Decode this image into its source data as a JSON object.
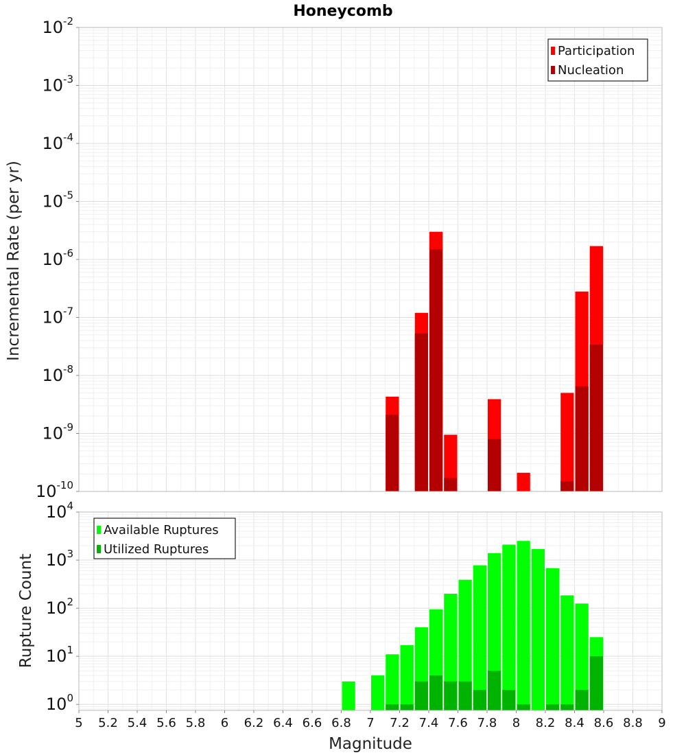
{
  "chart_data": [
    {
      "type": "bar",
      "title": "Honeycomb",
      "ylabel": "Incremental Rate (per yr)",
      "xlabel": "",
      "xlim": [
        5,
        9
      ],
      "ylim": [
        1e-10,
        0.01
      ],
      "yscale": "log",
      "grid": true,
      "legend_position": "top-right",
      "bar_width": 0.1,
      "x_ticks": [
        "5",
        "5.2",
        "5.4",
        "5.6",
        "5.8",
        "6",
        "6.2",
        "6.4",
        "6.6",
        "6.8",
        "7",
        "7.2",
        "7.4",
        "7.6",
        "7.8",
        "8",
        "8.2",
        "8.4",
        "8.6",
        "8.8",
        "9"
      ],
      "y_tick_exponents": [
        "-10",
        "-9",
        "-8",
        "-7",
        "-6",
        "-5",
        "-4",
        "-3",
        "-2"
      ],
      "series": [
        {
          "name": "Participation",
          "color": "#ff0000",
          "points": [
            {
              "x": 7.15,
              "y": 4.3e-09
            },
            {
              "x": 7.35,
              "y": 1.2e-07
            },
            {
              "x": 7.45,
              "y": 3e-06
            },
            {
              "x": 7.55,
              "y": 9.5e-10
            },
            {
              "x": 7.85,
              "y": 3.9e-09
            },
            {
              "x": 8.05,
              "y": 2.1e-10
            },
            {
              "x": 8.35,
              "y": 5e-09
            },
            {
              "x": 8.45,
              "y": 2.8e-07
            },
            {
              "x": 8.55,
              "y": 1.7e-06
            }
          ]
        },
        {
          "name": "Nucleation",
          "color": "#b30000",
          "points": [
            {
              "x": 7.15,
              "y": 2.1e-09
            },
            {
              "x": 7.35,
              "y": 5.3e-08
            },
            {
              "x": 7.45,
              "y": 1.5e-06
            },
            {
              "x": 7.55,
              "y": 1.7e-10
            },
            {
              "x": 7.85,
              "y": 8e-10
            },
            {
              "x": 8.35,
              "y": 1.5e-10
            },
            {
              "x": 8.45,
              "y": 6.5e-09
            },
            {
              "x": 8.55,
              "y": 3.4e-08
            }
          ]
        }
      ]
    },
    {
      "type": "bar",
      "title": "",
      "ylabel": "Rupture Count",
      "xlabel": "Magnitude",
      "xlim": [
        5,
        9
      ],
      "ylim": [
        0.75,
        10000
      ],
      "yscale": "log",
      "grid": true,
      "legend_position": "top-left",
      "bar_width": 0.1,
      "x_ticks": [
        "5",
        "5.2",
        "5.4",
        "5.6",
        "5.8",
        "6",
        "6.2",
        "6.4",
        "6.6",
        "6.8",
        "7",
        "7.2",
        "7.4",
        "7.6",
        "7.8",
        "8",
        "8.2",
        "8.4",
        "8.6",
        "8.8",
        "9"
      ],
      "y_tick_exponents": [
        "0",
        "1",
        "2",
        "3",
        "4"
      ],
      "series": [
        {
          "name": "Available Ruptures",
          "color": "#00ff00",
          "points": [
            {
              "x": 6.85,
              "y": 3
            },
            {
              "x": 7.05,
              "y": 4
            },
            {
              "x": 7.15,
              "y": 11
            },
            {
              "x": 7.25,
              "y": 17
            },
            {
              "x": 7.35,
              "y": 40
            },
            {
              "x": 7.45,
              "y": 95
            },
            {
              "x": 7.55,
              "y": 200
            },
            {
              "x": 7.65,
              "y": 390
            },
            {
              "x": 7.75,
              "y": 780
            },
            {
              "x": 7.85,
              "y": 1400
            },
            {
              "x": 7.95,
              "y": 2100
            },
            {
              "x": 8.05,
              "y": 2500
            },
            {
              "x": 8.15,
              "y": 1700
            },
            {
              "x": 8.25,
              "y": 680
            },
            {
              "x": 8.35,
              "y": 185
            },
            {
              "x": 8.45,
              "y": 125
            },
            {
              "x": 8.55,
              "y": 25
            }
          ]
        },
        {
          "name": "Utilized Ruptures",
          "color": "#00b300",
          "points": [
            {
              "x": 7.15,
              "y": 1
            },
            {
              "x": 7.25,
              "y": 1
            },
            {
              "x": 7.35,
              "y": 3
            },
            {
              "x": 7.45,
              "y": 4
            },
            {
              "x": 7.55,
              "y": 3
            },
            {
              "x": 7.65,
              "y": 3
            },
            {
              "x": 7.75,
              "y": 2
            },
            {
              "x": 7.85,
              "y": 5
            },
            {
              "x": 7.95,
              "y": 2
            },
            {
              "x": 8.05,
              "y": 1
            },
            {
              "x": 8.25,
              "y": 1
            },
            {
              "x": 8.35,
              "y": 1
            },
            {
              "x": 8.45,
              "y": 2
            },
            {
              "x": 8.55,
              "y": 10
            }
          ]
        }
      ]
    }
  ]
}
